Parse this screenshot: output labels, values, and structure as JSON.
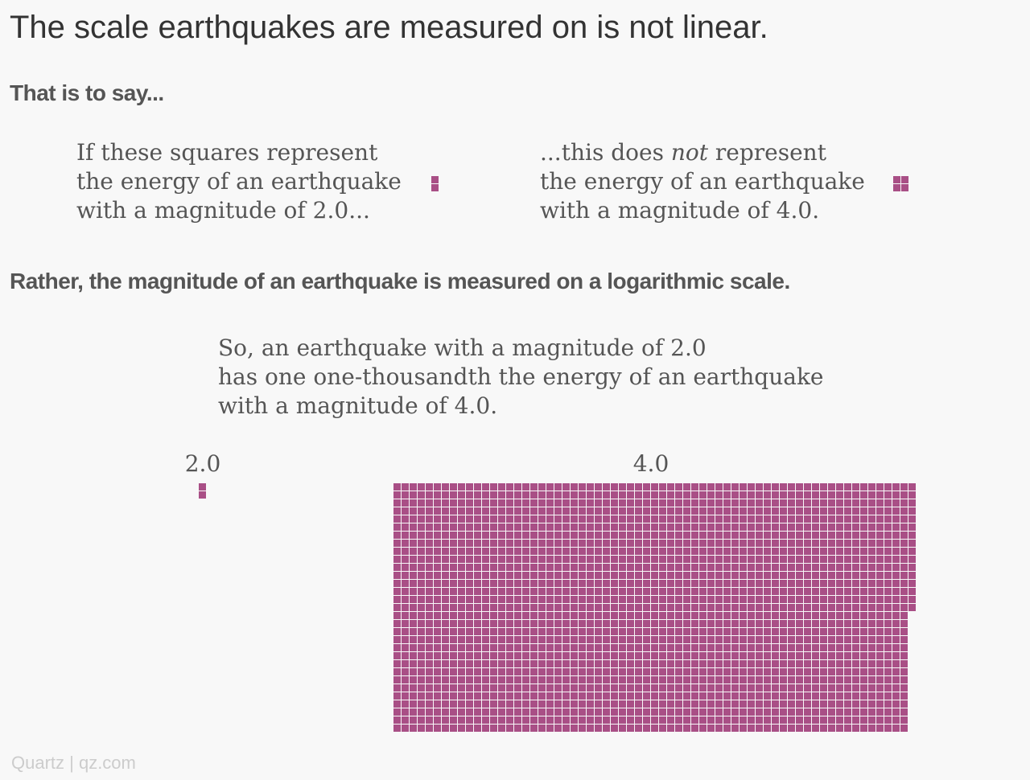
{
  "title": "The scale earthquakes are measured on is not linear.",
  "section1_heading": "That is to say...",
  "left_block": {
    "line1": "If these squares represent",
    "line2": "the energy of an earthquake",
    "line3": "with a magnitude of 2.0..."
  },
  "right_block": {
    "line1_pre": "...this does ",
    "line1_em": "not",
    "line1_post": " represent",
    "line2": "the energy of an earthquake",
    "line3": "with a magnitude of 4.0."
  },
  "section2_heading": "Rather, the magnitude of an earthquake is measured on a logarithmic scale.",
  "explanation": {
    "line1": "So, an earthquake with a magnitude of 2.0",
    "line2": "has one one-thousandth the energy of an earthquake",
    "line3": "with a magnitude of 4.0."
  },
  "footer": "Quartz | qz.com",
  "colors": {
    "square": "#a94f86",
    "background": "#f8f8f8"
  },
  "chart_data": {
    "type": "waffle",
    "unit": "squares",
    "series": [
      {
        "name": "2.0",
        "value": 2
      },
      {
        "name": "4.0",
        "value": 2000
      }
    ],
    "misleading_linear_example": [
      {
        "magnitude": "2.0",
        "value": 2
      },
      {
        "magnitude": "4.0",
        "value": 4
      }
    ]
  }
}
